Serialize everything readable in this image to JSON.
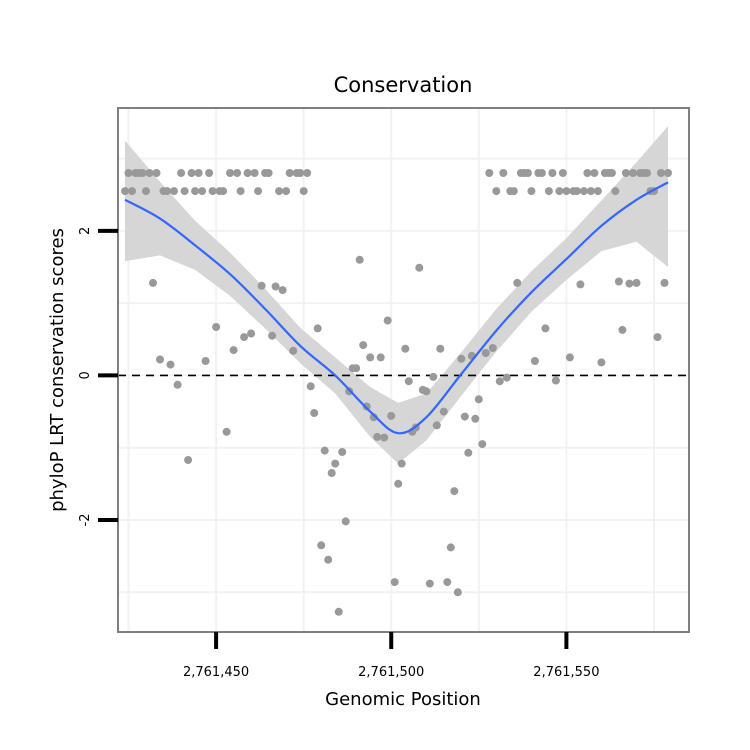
{
  "colors": {
    "point": "#999999",
    "smooth_line": "#3366FF",
    "ribbon": "#D4D4D4",
    "grid": "#F2F2F2",
    "panel_border": "#7F7F7F",
    "ticks": "#000000"
  },
  "chart_data": {
    "type": "scatter",
    "title": "Conservation",
    "xlabel": "Genomic Position",
    "ylabel": "phyloP LRT conservation scores",
    "xlim": [
      2761422,
      2761585
    ],
    "ylim": [
      -3.55,
      3.7
    ],
    "x_ticks": [
      2761450,
      2761500,
      2761550
    ],
    "x_tick_labels": [
      "2,761,450",
      "2,761,500",
      "2,761,550"
    ],
    "y_ticks": [
      -2,
      0,
      2
    ],
    "y_tick_labels": [
      "-2",
      "0",
      "2"
    ],
    "reference_line": {
      "y": 0,
      "style": "dashed"
    },
    "points": [
      [
        2761424,
        2.55
      ],
      [
        2761425,
        2.8
      ],
      [
        2761426,
        2.55
      ],
      [
        2761427,
        2.8
      ],
      [
        2761428,
        2.8
      ],
      [
        2761429,
        2.8
      ],
      [
        2761430,
        2.55
      ],
      [
        2761431,
        2.8
      ],
      [
        2761432,
        1.28
      ],
      [
        2761433,
        2.8
      ],
      [
        2761434,
        0.22
      ],
      [
        2761435,
        2.55
      ],
      [
        2761436,
        2.55
      ],
      [
        2761437,
        0.15
      ],
      [
        2761438,
        2.55
      ],
      [
        2761439,
        -0.13
      ],
      [
        2761440,
        2.8
      ],
      [
        2761441,
        2.55
      ],
      [
        2761442,
        -1.17
      ],
      [
        2761443,
        2.8
      ],
      [
        2761444,
        2.55
      ],
      [
        2761445,
        2.8
      ],
      [
        2761446,
        2.55
      ],
      [
        2761447,
        0.2
      ],
      [
        2761448,
        2.8
      ],
      [
        2761449,
        2.55
      ],
      [
        2761450,
        0.67
      ],
      [
        2761451,
        2.55
      ],
      [
        2761452,
        2.55
      ],
      [
        2761453,
        -0.78
      ],
      [
        2761454,
        2.8
      ],
      [
        2761455,
        0.35
      ],
      [
        2761456,
        2.8
      ],
      [
        2761457,
        2.55
      ],
      [
        2761458,
        0.53
      ],
      [
        2761459,
        2.8
      ],
      [
        2761460,
        0.58
      ],
      [
        2761461,
        2.8
      ],
      [
        2761462,
        2.55
      ],
      [
        2761463,
        1.24
      ],
      [
        2761464,
        2.8
      ],
      [
        2761465,
        2.8
      ],
      [
        2761466,
        0.55
      ],
      [
        2761467,
        1.23
      ],
      [
        2761468,
        2.55
      ],
      [
        2761469,
        1.18
      ],
      [
        2761470,
        2.55
      ],
      [
        2761471,
        2.8
      ],
      [
        2761472,
        0.34
      ],
      [
        2761473,
        2.8
      ],
      [
        2761474,
        2.8
      ],
      [
        2761475,
        2.55
      ],
      [
        2761476,
        2.8
      ],
      [
        2761477,
        -0.15
      ],
      [
        2761478,
        -0.52
      ],
      [
        2761479,
        0.65
      ],
      [
        2761480,
        -2.35
      ],
      [
        2761481,
        -1.04
      ],
      [
        2761482,
        -2.55
      ],
      [
        2761483,
        -1.35
      ],
      [
        2761484,
        -1.22
      ],
      [
        2761485,
        -3.27
      ],
      [
        2761486,
        -1.06
      ],
      [
        2761487,
        -2.02
      ],
      [
        2761488,
        -0.22
      ],
      [
        2761489,
        0.1
      ],
      [
        2761490,
        0.1
      ],
      [
        2761491,
        1.6
      ],
      [
        2761492,
        0.42
      ],
      [
        2761493,
        -0.43
      ],
      [
        2761494,
        0.25
      ],
      [
        2761495,
        -0.58
      ],
      [
        2761496,
        -0.85
      ],
      [
        2761497,
        0.25
      ],
      [
        2761498,
        -0.86
      ],
      [
        2761499,
        0.76
      ],
      [
        2761500,
        -0.56
      ],
      [
        2761501,
        -2.86
      ],
      [
        2761502,
        -1.5
      ],
      [
        2761503,
        -1.22
      ],
      [
        2761504,
        0.37
      ],
      [
        2761505,
        -0.08
      ],
      [
        2761506,
        -0.78
      ],
      [
        2761507,
        -0.72
      ],
      [
        2761508,
        1.49
      ],
      [
        2761509,
        -0.2
      ],
      [
        2761510,
        -0.22
      ],
      [
        2761511,
        -2.88
      ],
      [
        2761512,
        -0.02
      ],
      [
        2761513,
        -0.69
      ],
      [
        2761514,
        0.37
      ],
      [
        2761515,
        -0.5
      ],
      [
        2761516,
        -2.86
      ],
      [
        2761517,
        -2.38
      ],
      [
        2761518,
        -1.6
      ],
      [
        2761519,
        -3.0
      ],
      [
        2761520,
        0.23
      ],
      [
        2761521,
        -0.57
      ],
      [
        2761522,
        -1.07
      ],
      [
        2761523,
        0.27
      ],
      [
        2761524,
        -0.6
      ],
      [
        2761525,
        -0.33
      ],
      [
        2761526,
        -0.95
      ],
      [
        2761527,
        0.31
      ],
      [
        2761528,
        2.8
      ],
      [
        2761529,
        0.38
      ],
      [
        2761530,
        2.55
      ],
      [
        2761531,
        -0.08
      ],
      [
        2761532,
        2.8
      ],
      [
        2761533,
        -0.03
      ],
      [
        2761534,
        2.55
      ],
      [
        2761535,
        2.55
      ],
      [
        2761536,
        1.28
      ],
      [
        2761537,
        2.8
      ],
      [
        2761538,
        2.8
      ],
      [
        2761539,
        2.8
      ],
      [
        2761540,
        2.55
      ],
      [
        2761541,
        0.2
      ],
      [
        2761542,
        2.8
      ],
      [
        2761543,
        2.8
      ],
      [
        2761544,
        0.65
      ],
      [
        2761545,
        2.55
      ],
      [
        2761546,
        2.8
      ],
      [
        2761547,
        -0.07
      ],
      [
        2761548,
        2.55
      ],
      [
        2761549,
        2.8
      ],
      [
        2761550,
        2.55
      ],
      [
        2761551,
        0.25
      ],
      [
        2761552,
        2.55
      ],
      [
        2761553,
        2.55
      ],
      [
        2761554,
        1.26
      ],
      [
        2761555,
        2.55
      ],
      [
        2761556,
        2.8
      ],
      [
        2761557,
        2.55
      ],
      [
        2761558,
        2.8
      ],
      [
        2761559,
        2.55
      ],
      [
        2761560,
        0.18
      ],
      [
        2761561,
        2.8
      ],
      [
        2761562,
        2.8
      ],
      [
        2761563,
        2.8
      ],
      [
        2761564,
        2.55
      ],
      [
        2761565,
        1.3
      ],
      [
        2761566,
        0.63
      ],
      [
        2761567,
        2.8
      ],
      [
        2761568,
        1.27
      ],
      [
        2761569,
        2.8
      ],
      [
        2761570,
        1.28
      ],
      [
        2761571,
        2.8
      ],
      [
        2761572,
        2.8
      ],
      [
        2761573,
        2.8
      ],
      [
        2761574,
        2.55
      ],
      [
        2761575,
        2.55
      ],
      [
        2761576,
        0.53
      ],
      [
        2761577,
        2.8
      ],
      [
        2761578,
        1.28
      ],
      [
        2761579,
        2.8
      ]
    ],
    "smooth": {
      "method": "loess",
      "x": [
        2761424,
        2761434,
        2761444,
        2761454,
        2761464,
        2761474,
        2761484,
        2761494,
        2761502,
        2761510,
        2761520,
        2761530,
        2761540,
        2761550,
        2761560,
        2761570,
        2761579
      ],
      "y": [
        2.43,
        2.17,
        1.8,
        1.4,
        0.92,
        0.41,
        0.0,
        -0.5,
        -0.8,
        -0.58,
        0.02,
        0.62,
        1.15,
        1.61,
        2.07,
        2.43,
        2.67
      ],
      "lower": [
        1.58,
        1.66,
        1.46,
        1.1,
        0.65,
        0.17,
        -0.25,
        -0.85,
        -1.22,
        -0.9,
        -0.28,
        0.33,
        0.88,
        1.32,
        1.72,
        1.85,
        1.5
      ],
      "upper": [
        3.25,
        2.68,
        2.14,
        1.7,
        1.2,
        0.66,
        0.25,
        -0.16,
        -0.38,
        -0.25,
        0.32,
        0.92,
        1.44,
        1.9,
        2.42,
        2.95,
        3.45
      ]
    }
  }
}
